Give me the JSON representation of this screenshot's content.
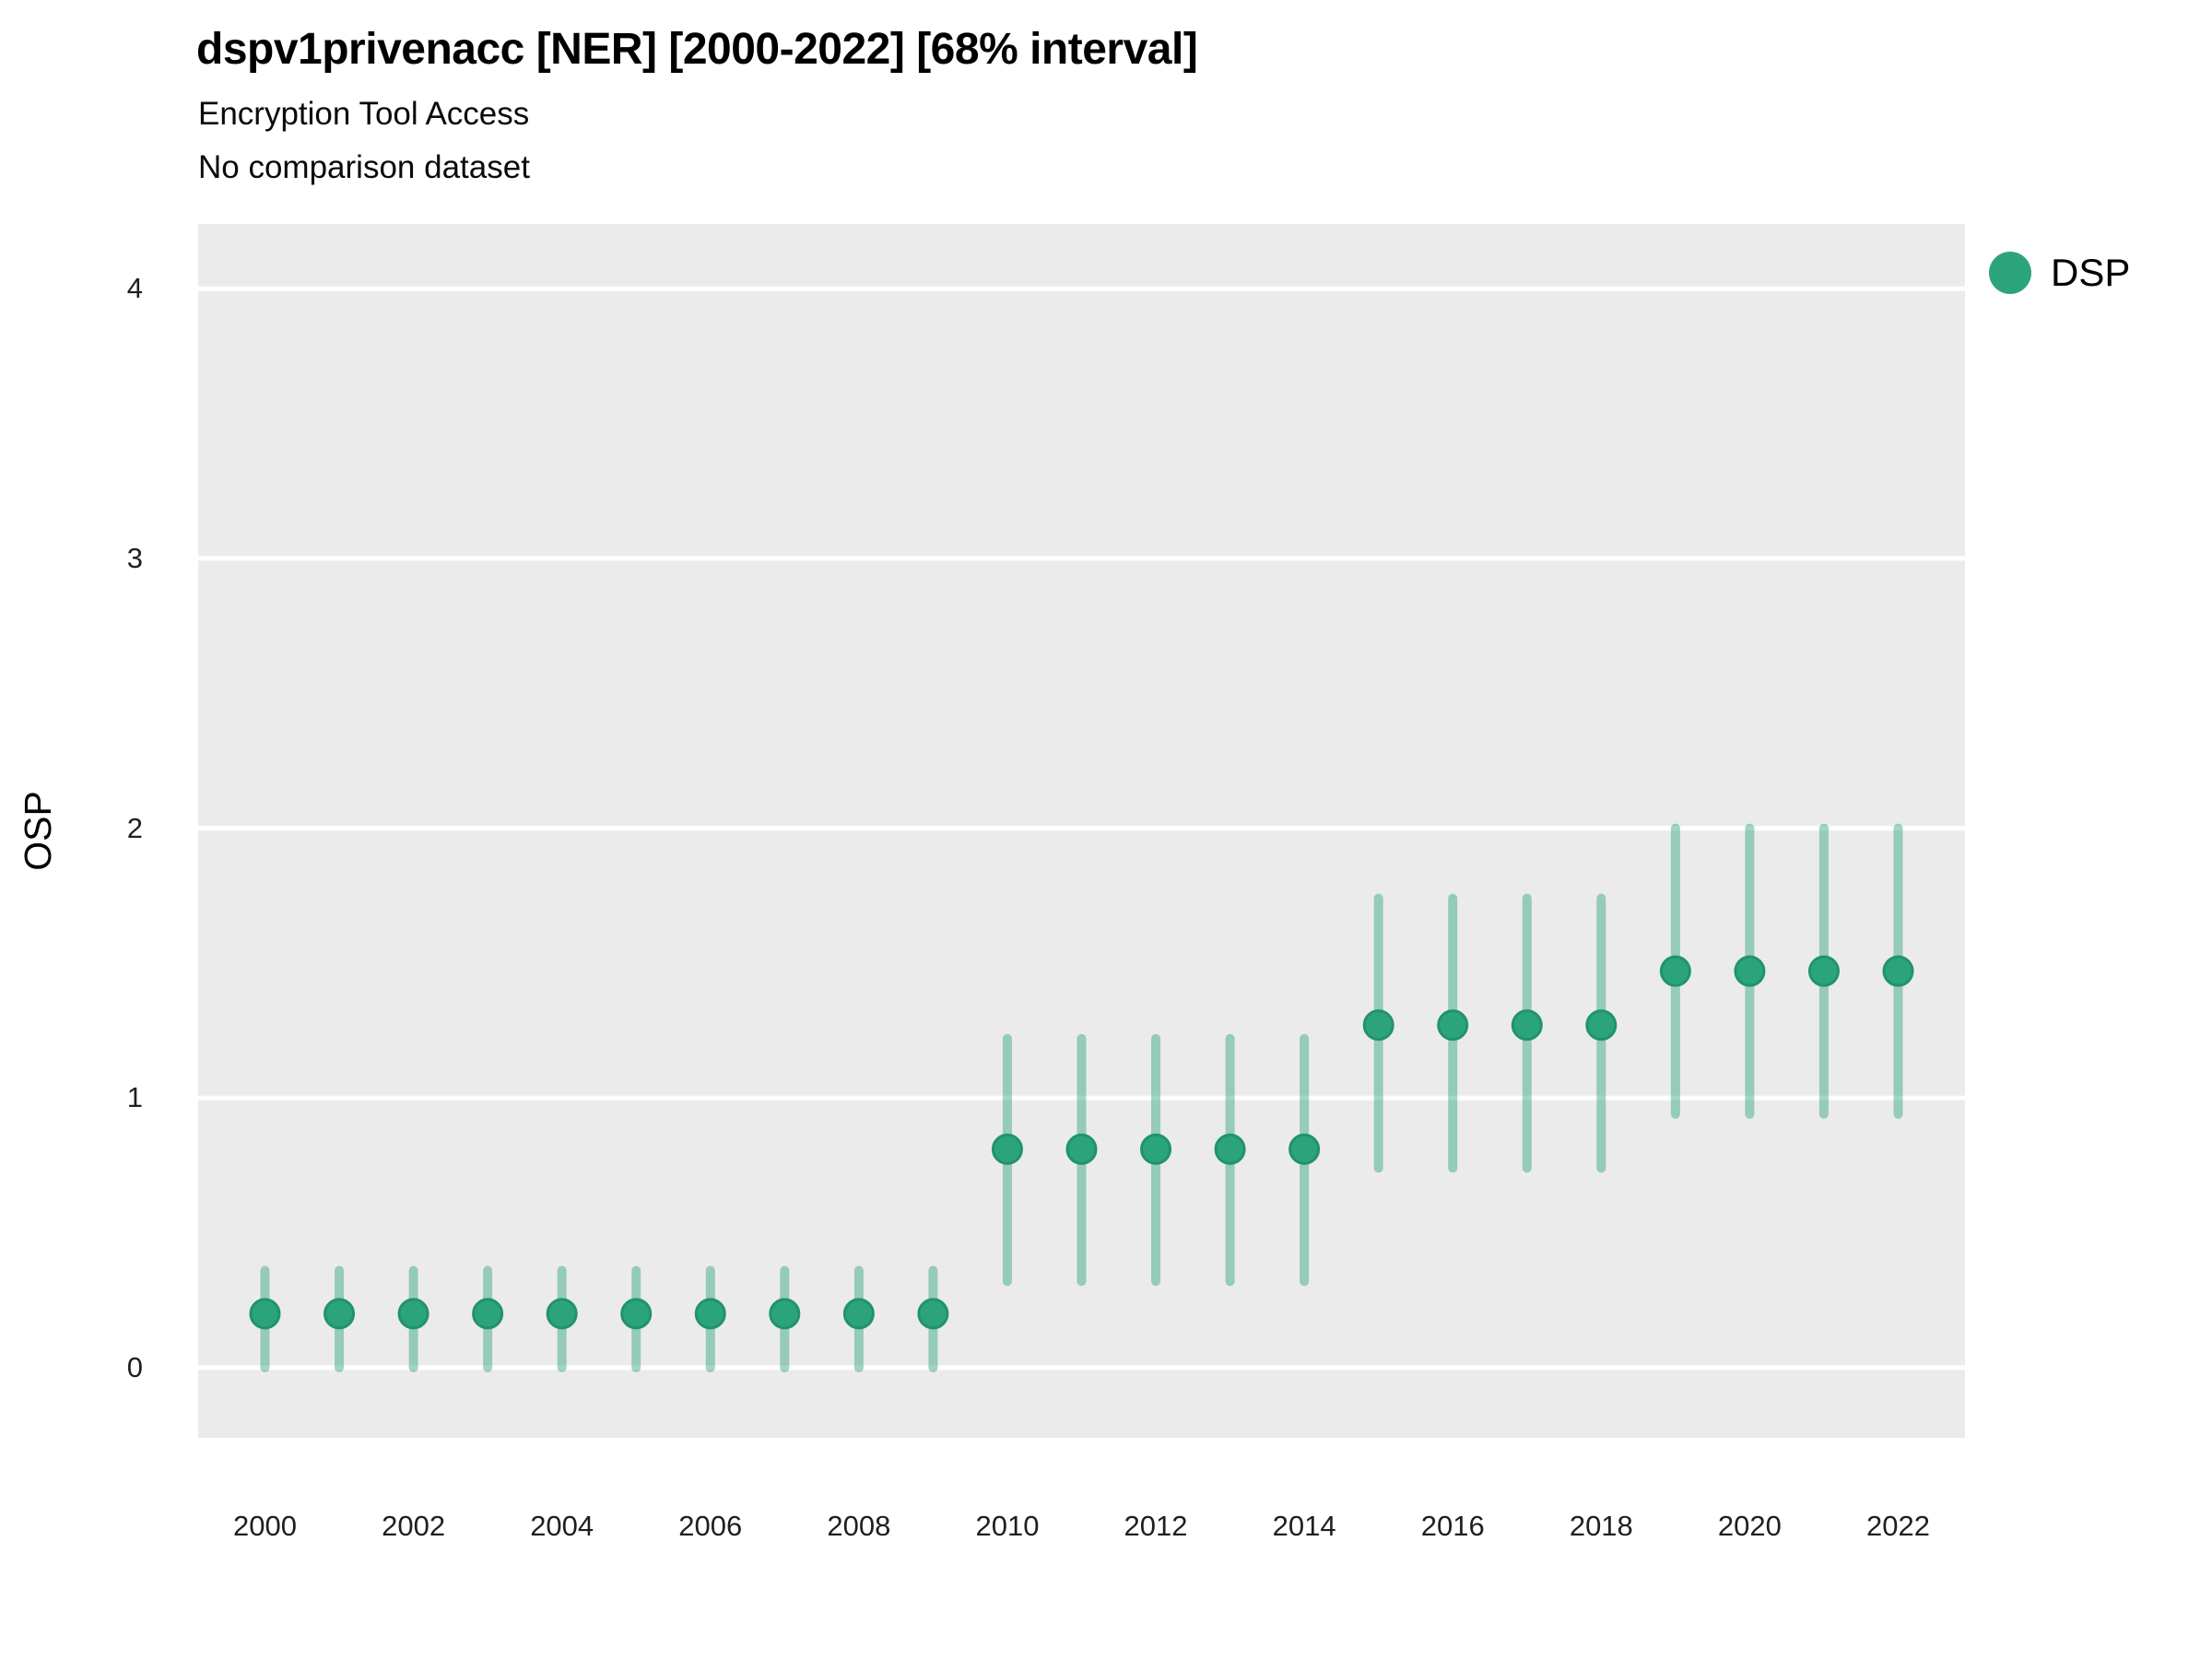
{
  "header": {
    "title": "dspv1privenacc [NER] [2000-2022] [68% interval]",
    "subtitle": "Encryption Tool Access",
    "note": "No comparison dataset"
  },
  "y_axis": {
    "label": "OSP"
  },
  "legend": {
    "label": "DSP"
  },
  "colors": {
    "point_fill": "#2ca47b",
    "point_stroke": "#21936b",
    "interval_line": "rgba(44,163,122,0.45)",
    "panel_bg": "#ebebeb",
    "gridline": "#ffffff",
    "tick_text": "#1f1f1f"
  },
  "chart_data": {
    "type": "scatter",
    "mark": "pointrange",
    "title": "dspv1privenacc [NER] [2000-2022] [68% interval]",
    "subtitle": "Encryption Tool Access",
    "note": "No comparison dataset",
    "interval_level": "68%",
    "xlabel": "",
    "ylabel": "OSP",
    "xlim": [
      1999.1,
      2022.9
    ],
    "ylim": [
      -0.26,
      4.24
    ],
    "x_ticks": [
      2000,
      2002,
      2004,
      2006,
      2008,
      2010,
      2012,
      2014,
      2016,
      2018,
      2020,
      2022
    ],
    "y_ticks": [
      0,
      1,
      2,
      3,
      4
    ],
    "grid": "major-horizontal-only",
    "legend_position": "right",
    "series": [
      {
        "name": "DSP",
        "x": [
          2000,
          2001,
          2002,
          2003,
          2004,
          2005,
          2006,
          2007,
          2008,
          2009,
          2010,
          2011,
          2012,
          2013,
          2014,
          2015,
          2016,
          2017,
          2018,
          2019,
          2020,
          2021,
          2022
        ],
        "estimate": [
          0.2,
          0.2,
          0.2,
          0.2,
          0.2,
          0.2,
          0.2,
          0.2,
          0.2,
          0.2,
          0.81,
          0.81,
          0.81,
          0.81,
          0.81,
          1.27,
          1.27,
          1.27,
          1.27,
          1.47,
          1.47,
          1.47,
          1.47
        ],
        "lower": [
          0.0,
          0.0,
          0.0,
          0.0,
          0.0,
          0.0,
          0.0,
          0.0,
          0.0,
          0.0,
          0.32,
          0.32,
          0.32,
          0.32,
          0.32,
          0.74,
          0.74,
          0.74,
          0.74,
          0.94,
          0.94,
          0.94,
          0.94
        ],
        "upper": [
          0.36,
          0.36,
          0.36,
          0.36,
          0.36,
          0.36,
          0.36,
          0.36,
          0.36,
          0.36,
          1.22,
          1.22,
          1.22,
          1.22,
          1.22,
          1.74,
          1.74,
          1.74,
          1.74,
          2.0,
          2.0,
          2.0,
          2.0
        ]
      }
    ]
  }
}
